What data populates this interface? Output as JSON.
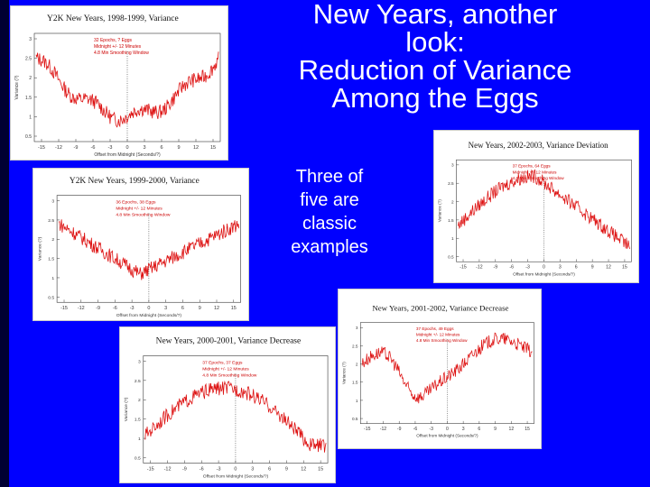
{
  "slide": {
    "title_lines": [
      "New Years, another",
      "look:",
      "Reduction of Variance",
      "Among the Eggs"
    ],
    "subtext_lines": [
      "Three of",
      "five are",
      "classic",
      "examples"
    ],
    "colors": {
      "background": "#0000ff",
      "text": "#ffffff",
      "trace": "#dd1111"
    }
  },
  "charts": [
    {
      "title": "Y2K New Years, 1998-1999, Variance",
      "legend": [
        "32 Epochs, ? Eggs",
        "Midnight +/- 12 Minutes",
        "4.8 Min Smoothing Window"
      ],
      "yticks": [
        "0.5",
        "1",
        "1.5",
        "2",
        "2.5",
        "3"
      ],
      "xticks": [
        "-15",
        "-12",
        "-9",
        "-6",
        "-3",
        "0",
        "3",
        "6",
        "9",
        "12",
        "15"
      ],
      "xlabel": "Offset from Midnight (Seconds/?)",
      "ylabel": "Variance (?)",
      "shape": "u-dip"
    },
    {
      "title": "Y2K New Years, 1999-2000, Variance",
      "legend": [
        "36 Epochs, 38 Eggs",
        "Midnight +/- 12 Minutes",
        "4.8 Min Smoothing Window"
      ],
      "yticks": [
        "0.5",
        "1",
        "1.5",
        "2",
        "2.5",
        "3"
      ],
      "xticks": [
        "-15",
        "-12",
        "-9",
        "-6",
        "-3",
        "0",
        "3",
        "6",
        "9",
        "12",
        "15"
      ],
      "xlabel": "Offset from Midnight (Seconds/?)",
      "ylabel": "Variance (?)",
      "shape": "v-dip"
    },
    {
      "title": "New Years, 2002-2003, Variance Deviation",
      "legend": [
        "37 Epochs, 64 Eggs",
        "Midnight +/- 12 Minutes",
        "4.8 Min Smoothing Window"
      ],
      "yticks": [
        "0.5",
        "1",
        "1.5",
        "2",
        "2.5",
        "3"
      ],
      "xticks": [
        "-15",
        "-12",
        "-9",
        "-6",
        "-3",
        "0",
        "3",
        "6",
        "9",
        "12",
        "15"
      ],
      "xlabel": "Offset from Midnight (Seconds/?)",
      "ylabel": "Variance (?)",
      "shape": "peak"
    },
    {
      "title": "New Years, 2001-2002, Variance Decrease",
      "legend": [
        "37 Epochs, 49 Eggs",
        "Midnight +/- 12 Minutes",
        "4.8 Min Smoothing Window"
      ],
      "yticks": [
        "0.5",
        "1",
        "1.5",
        "2",
        "2.5",
        "3"
      ],
      "xticks": [
        "-15",
        "-12",
        "-9",
        "-6",
        "-3",
        "0",
        "3",
        "6",
        "9",
        "12",
        "15"
      ],
      "xlabel": "Offset from Midnight (Seconds/?)",
      "ylabel": "Variance (?)",
      "shape": "dip-rise"
    },
    {
      "title": "New Years, 2000-2001, Variance Decrease",
      "legend": [
        "37 Epochs, 37 Eggs",
        "Midnight +/- 12 Minutes",
        "4.8 Min Smoothing Window"
      ],
      "yticks": [
        "0.5",
        "1",
        "1.5",
        "2",
        "2.5",
        "3"
      ],
      "xticks": [
        "-15",
        "-12",
        "-9",
        "-6",
        "-3",
        "0",
        "3",
        "6",
        "9",
        "12",
        "15"
      ],
      "xlabel": "Offset from Midnight (Seconds/?)",
      "ylabel": "Variance (?)",
      "shape": "rise-fall"
    }
  ]
}
